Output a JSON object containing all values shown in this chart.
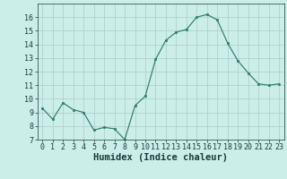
{
  "xlabel": "Humidex (Indice chaleur)",
  "x": [
    0,
    1,
    2,
    3,
    4,
    5,
    6,
    7,
    8,
    9,
    10,
    11,
    12,
    13,
    14,
    15,
    16,
    17,
    18,
    19,
    20,
    21,
    22,
    23
  ],
  "y": [
    9.3,
    8.5,
    9.7,
    9.2,
    9.0,
    7.7,
    7.9,
    7.8,
    7.0,
    9.5,
    10.2,
    12.9,
    14.3,
    14.9,
    15.1,
    16.0,
    16.2,
    15.8,
    14.1,
    12.8,
    11.9,
    11.1,
    11.0,
    11.1
  ],
  "ylim": [
    7,
    17
  ],
  "xlim": [
    -0.5,
    23.5
  ],
  "yticks": [
    7,
    8,
    9,
    10,
    11,
    12,
    13,
    14,
    15,
    16
  ],
  "xticks": [
    0,
    1,
    2,
    3,
    4,
    5,
    6,
    7,
    8,
    9,
    10,
    11,
    12,
    13,
    14,
    15,
    16,
    17,
    18,
    19,
    20,
    21,
    22,
    23
  ],
  "line_color": "#2e7d6d",
  "marker_color": "#2e7d6d",
  "bg_color": "#cceee8",
  "grid_color": "#aacccc",
  "text_color": "#1a3a3a",
  "xlabel_fontsize": 7.5,
  "tick_fontsize": 6.0
}
